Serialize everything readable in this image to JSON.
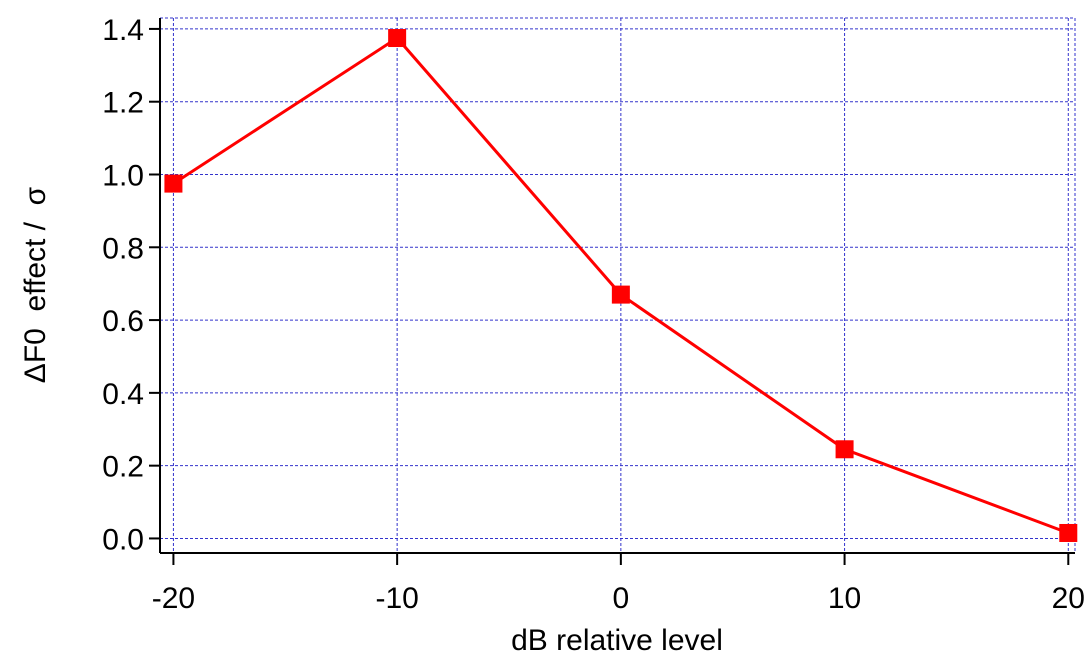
{
  "chart_data": {
    "type": "line",
    "x_label": "dB relative level",
    "y_label": "ΔF0  effect /  σ",
    "x": [
      -20,
      -10,
      0,
      10,
      20
    ],
    "series": [
      {
        "name": "ΔF0 effect",
        "color": "#ff0000",
        "values": [
          0.975,
          1.375,
          0.67,
          0.245,
          0.015
        ]
      }
    ],
    "xlim": [
      -20.6,
      20.3
    ],
    "ylim": [
      -0.04,
      1.43
    ],
    "xticks": [
      -20,
      -10,
      0,
      10,
      20
    ],
    "yticks": [
      {
        "value": 0,
        "label": "0.0"
      },
      0.2,
      0.4,
      0.6,
      0.8,
      {
        "value": 1,
        "label": "1.0"
      },
      1.2,
      1.4
    ],
    "grid": true,
    "grid_color": "#3333cc"
  }
}
